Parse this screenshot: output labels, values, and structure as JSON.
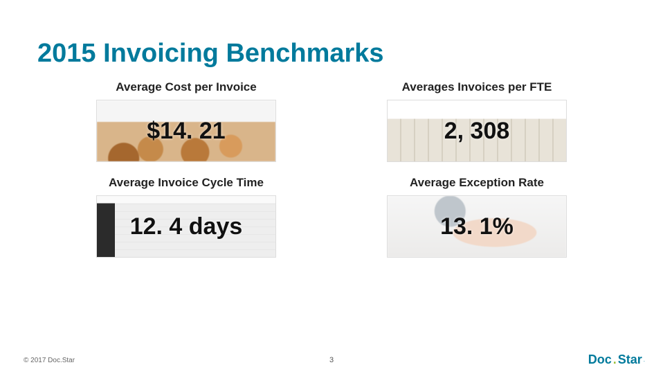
{
  "title": "2015 Invoicing Benchmarks",
  "metrics": [
    {
      "label": "Average Cost per Invoice",
      "value": "$14. 21",
      "bgClass": "bg-coins"
    },
    {
      "label": "Averages Invoices per FTE",
      "value": "2, 308",
      "bgClass": "bg-papers"
    },
    {
      "label": "Average Invoice Cycle Time",
      "value": "12. 4 days",
      "bgClass": "bg-calendar"
    },
    {
      "label": "Average Exception Rate",
      "value": "13. 1%",
      "bgClass": "bg-puzzle"
    }
  ],
  "footer": {
    "copyright": "© 2017 Doc.Star",
    "page": "3",
    "logo": {
      "part1": "Doc",
      "accent": ".",
      "part2": "Star",
      "tm": "."
    }
  },
  "colors": {
    "brand_teal": "#007a9c",
    "brand_green": "#9bbf3b",
    "text": "#222222"
  }
}
